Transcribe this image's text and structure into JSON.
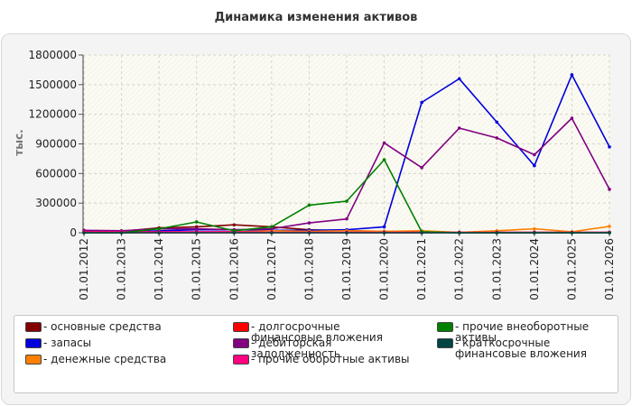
{
  "chart_data": {
    "type": "line",
    "title": "Динамика изменения активов",
    "ylabel": "тыс.",
    "xlabel": "",
    "ylim": [
      0,
      1800000
    ],
    "yticks": [
      "0",
      "300000",
      "600000",
      "900000",
      "1200000",
      "1500000",
      "1800000"
    ],
    "categories": [
      "01.01.2012",
      "01.01.2013",
      "01.01.2014",
      "01.01.2015",
      "01.01.2016",
      "01.01.2017",
      "01.01.2018",
      "01.01.2019",
      "01.01.2020",
      "01.01.2021",
      "01.01.2022",
      "01.01.2023",
      "01.01.2024",
      "01.01.2025",
      "01.01.2026"
    ],
    "grid": true,
    "legend_position": "bottom",
    "series": [
      {
        "name": "- основные средства",
        "color": "#800000",
        "values": [
          20000,
          15000,
          50000,
          60000,
          80000,
          60000,
          30000,
          20000,
          15000,
          5000,
          5000,
          5000,
          5000,
          5000,
          5000
        ]
      },
      {
        "name": "- запасы",
        "color": "#0000dd",
        "values": [
          5000,
          5000,
          20000,
          30000,
          30000,
          25000,
          25000,
          30000,
          60000,
          1320000,
          1560000,
          1120000,
          680000,
          1600000,
          870000
        ]
      },
      {
        "name": "- денежные средства",
        "color": "#ff8000",
        "values": [
          5000,
          5000,
          5000,
          5000,
          10000,
          20000,
          15000,
          20000,
          15000,
          20000,
          5000,
          20000,
          40000,
          10000,
          65000
        ]
      },
      {
        "name": "- долгосрочные финансовые вложения",
        "color": "#ff0000",
        "values": [
          0,
          0,
          0,
          0,
          0,
          0,
          0,
          0,
          0,
          0,
          0,
          0,
          0,
          0,
          0
        ]
      },
      {
        "name": "- дебиторская задолженность",
        "color": "#800080",
        "values": [
          25000,
          20000,
          40000,
          40000,
          30000,
          40000,
          100000,
          140000,
          910000,
          660000,
          1060000,
          960000,
          790000,
          1160000,
          440000
        ]
      },
      {
        "name": "- прочие оборотные активы",
        "color": "#ff0080",
        "values": [
          10000,
          10000,
          10000,
          10000,
          10000,
          5000,
          5000,
          5000,
          5000,
          5000,
          5000,
          5000,
          5000,
          5000,
          5000
        ]
      },
      {
        "name": "- прочие внеоборотные активы",
        "color": "#008000",
        "values": [
          0,
          0,
          40000,
          110000,
          20000,
          60000,
          280000,
          320000,
          740000,
          10000,
          0,
          0,
          0,
          0,
          0
        ]
      },
      {
        "name": "- краткосрочные финансовые вложения",
        "color": "#004444",
        "values": [
          0,
          0,
          0,
          0,
          0,
          0,
          0,
          0,
          0,
          0,
          0,
          0,
          0,
          0,
          0
        ]
      }
    ]
  }
}
